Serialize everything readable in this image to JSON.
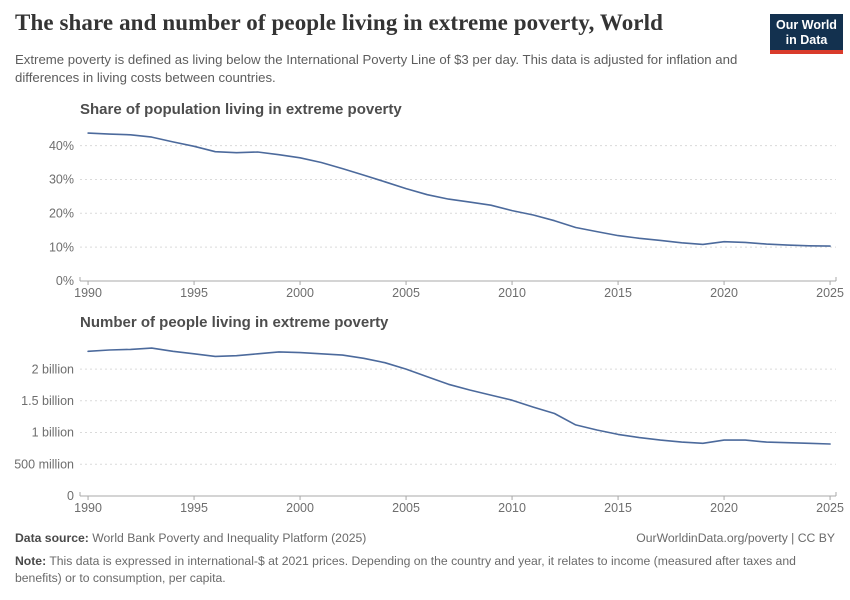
{
  "header": {
    "title": "The share and number of people living in extreme poverty, World",
    "subtitle": "Extreme poverty is defined as living below the International Poverty Line of $3 per day. This data is adjusted for inflation and differences in living costs between countries.",
    "logo": {
      "line1": "Our World",
      "line2": "in Data",
      "bg_color": "#13314f",
      "accent_color": "#d93b2b"
    }
  },
  "colors": {
    "line": "#4c6a9c",
    "grid": "#dadada",
    "axis": "#a8a8a8",
    "tick_text": "#6e6e6e"
  },
  "chart_data": [
    {
      "type": "line",
      "title": "Share of population living in extreme poverty",
      "x": [
        1990,
        1991,
        1992,
        1993,
        1994,
        1995,
        1996,
        1997,
        1998,
        1999,
        2000,
        2001,
        2002,
        2003,
        2004,
        2005,
        2006,
        2007,
        2008,
        2009,
        2010,
        2011,
        2012,
        2013,
        2014,
        2015,
        2016,
        2017,
        2018,
        2019,
        2020,
        2021,
        2022,
        2023,
        2024,
        2025
      ],
      "series": [
        {
          "name": "World",
          "values": [
            43.7,
            43.4,
            43.2,
            42.5,
            41.1,
            39.8,
            38.2,
            37.9,
            38.1,
            37.3,
            36.4,
            35.0,
            33.2,
            31.3,
            29.3,
            27.3,
            25.5,
            24.2,
            23.3,
            22.4,
            20.8,
            19.5,
            17.8,
            15.8,
            14.6,
            13.4,
            12.6,
            12.0,
            11.3,
            10.8,
            11.6,
            11.4,
            10.9,
            10.6,
            10.4,
            10.3
          ]
        }
      ],
      "xlabel": "",
      "ylabel": "",
      "unit": "%",
      "xlim": [
        1989.62,
        2025.28
      ],
      "ylim": [
        0,
        45.2
      ],
      "x_ticks": [
        1990,
        1995,
        2000,
        2005,
        2010,
        2015,
        2020,
        2025
      ],
      "y_ticks": [
        {
          "v": 0,
          "label": "0%"
        },
        {
          "v": 10,
          "label": "10%"
        },
        {
          "v": 20,
          "label": "20%"
        },
        {
          "v": 30,
          "label": "30%"
        },
        {
          "v": 40,
          "label": "40%"
        }
      ],
      "grid": "dashed-horizontal",
      "legend": "none"
    },
    {
      "type": "line",
      "title": "Number of people living in extreme poverty",
      "x": [
        1990,
        1991,
        1992,
        1993,
        1994,
        1995,
        1996,
        1997,
        1998,
        1999,
        2000,
        2001,
        2002,
        2003,
        2004,
        2005,
        2006,
        2007,
        2008,
        2009,
        2010,
        2011,
        2012,
        2013,
        2014,
        2015,
        2016,
        2017,
        2018,
        2019,
        2020,
        2021,
        2022,
        2023,
        2024,
        2025
      ],
      "series": [
        {
          "name": "World",
          "values": [
            2.28,
            2.3,
            2.31,
            2.33,
            2.28,
            2.24,
            2.2,
            2.21,
            2.24,
            2.27,
            2.26,
            2.24,
            2.22,
            2.17,
            2.1,
            2.0,
            1.88,
            1.76,
            1.67,
            1.59,
            1.51,
            1.4,
            1.3,
            1.12,
            1.04,
            0.97,
            0.92,
            0.88,
            0.85,
            0.83,
            0.88,
            0.88,
            0.85,
            0.84,
            0.83,
            0.82
          ]
        }
      ],
      "xlabel": "",
      "ylabel": "",
      "unit": "billion people",
      "xlim": [
        1989.62,
        2025.28
      ],
      "ylim": [
        0,
        2.458
      ],
      "x_ticks": [
        1990,
        1995,
        2000,
        2005,
        2010,
        2015,
        2020,
        2025
      ],
      "y_ticks": [
        {
          "v": 0,
          "label": "0"
        },
        {
          "v": 0.5,
          "label": "500 million"
        },
        {
          "v": 1,
          "label": "1 billion"
        },
        {
          "v": 1.5,
          "label": "1.5 billion"
        },
        {
          "v": 2,
          "label": "2 billion"
        }
      ],
      "grid": "dashed-horizontal",
      "legend": "none"
    }
  ],
  "footer": {
    "data_source_label": "Data source:",
    "data_source_value": " World Bank Poverty and Inequality Platform (2025)",
    "credit": "OurWorldinData.org/poverty | CC BY",
    "note_label": "Note:",
    "note_value": " This data is expressed in international-$ at 2021 prices. Depending on the country and year, it relates to income (measured after taxes and benefits) or to consumption, per capita."
  }
}
